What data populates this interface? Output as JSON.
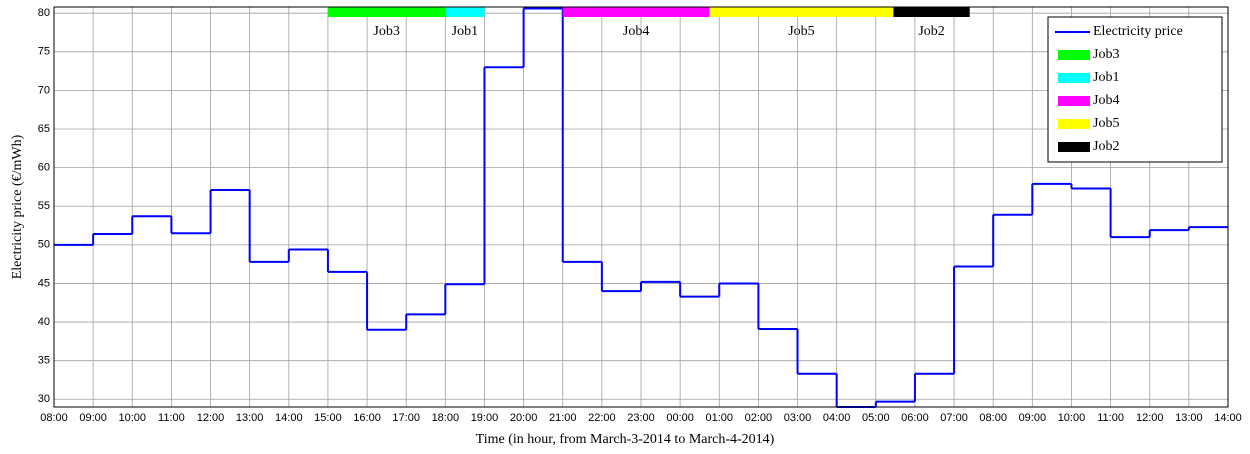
{
  "chart_data": {
    "type": "step",
    "xlabel": "Time (in hour, from March-3-2014 to March-4-2014)",
    "ylabel": "Electricity price (€/mWh)",
    "series": [
      {
        "name": "Electricity price",
        "color": "#0000ff",
        "x": [
          0,
          1,
          2,
          3,
          4,
          5,
          6,
          7,
          8,
          9,
          10,
          11,
          12,
          13,
          14,
          15,
          16,
          17,
          18,
          19,
          20,
          21,
          22,
          23,
          24,
          25,
          26,
          27,
          28,
          29
        ],
        "values": [
          50,
          51.4,
          53.7,
          51.5,
          57.1,
          47.8,
          49.4,
          46.5,
          39,
          41,
          44.9,
          73,
          80.6,
          47.8,
          44,
          45.2,
          43.3,
          45,
          39.1,
          33.3,
          29,
          29.7,
          33.3,
          47.2,
          53.9,
          57.9,
          57.3,
          51,
          51.9,
          52.3
        ]
      }
    ],
    "jobs": [
      {
        "name": "Job3",
        "color": "#00ff00",
        "start": 7,
        "end": 10
      },
      {
        "name": "Job1",
        "color": "#00ffff",
        "start": 10,
        "end": 11
      },
      {
        "name": "Job4",
        "color": "#ff00ff",
        "start": 13,
        "end": 16.75
      },
      {
        "name": "Job5",
        "color": "#ffff00",
        "start": 16.75,
        "end": 21.45
      },
      {
        "name": "Job2",
        "color": "#000000",
        "start": 21.45,
        "end": 23.4
      }
    ],
    "xlim": [
      0,
      30
    ],
    "xticks": [
      {
        "value": 0,
        "label": "08:00"
      },
      {
        "value": 1,
        "label": "09:00"
      },
      {
        "value": 2,
        "label": "10:00"
      },
      {
        "value": 3,
        "label": "11:00"
      },
      {
        "value": 4,
        "label": "12:00"
      },
      {
        "value": 5,
        "label": "13:00"
      },
      {
        "value": 6,
        "label": "14:00"
      },
      {
        "value": 7,
        "label": "15:00"
      },
      {
        "value": 8,
        "label": "16:00"
      },
      {
        "value": 9,
        "label": "17:00"
      },
      {
        "value": 10,
        "label": "18:00"
      },
      {
        "value": 11,
        "label": "19:00"
      },
      {
        "value": 12,
        "label": "20:00"
      },
      {
        "value": 13,
        "label": "21:00"
      },
      {
        "value": 14,
        "label": "22:00"
      },
      {
        "value": 15,
        "label": "23:00"
      },
      {
        "value": 16,
        "label": "00:00"
      },
      {
        "value": 17,
        "label": "01:00"
      },
      {
        "value": 18,
        "label": "02:00"
      },
      {
        "value": 19,
        "label": "03:00"
      },
      {
        "value": 20,
        "label": "04:00"
      },
      {
        "value": 21,
        "label": "05:00"
      },
      {
        "value": 22,
        "label": "06:00"
      },
      {
        "value": 23,
        "label": "07:00"
      },
      {
        "value": 24,
        "label": "08:00"
      },
      {
        "value": 25,
        "label": "09:00"
      },
      {
        "value": 26,
        "label": "10:00"
      },
      {
        "value": 27,
        "label": "11:00"
      },
      {
        "value": 28,
        "label": "12:00"
      },
      {
        "value": 29,
        "label": "13:00"
      },
      {
        "value": 30,
        "label": "14:00"
      }
    ],
    "ylim": [
      29,
      80.8
    ],
    "yticks": [
      30,
      35,
      40,
      45,
      50,
      55,
      60,
      65,
      70,
      75,
      80
    ],
    "grid": true,
    "legend": "upper right"
  }
}
